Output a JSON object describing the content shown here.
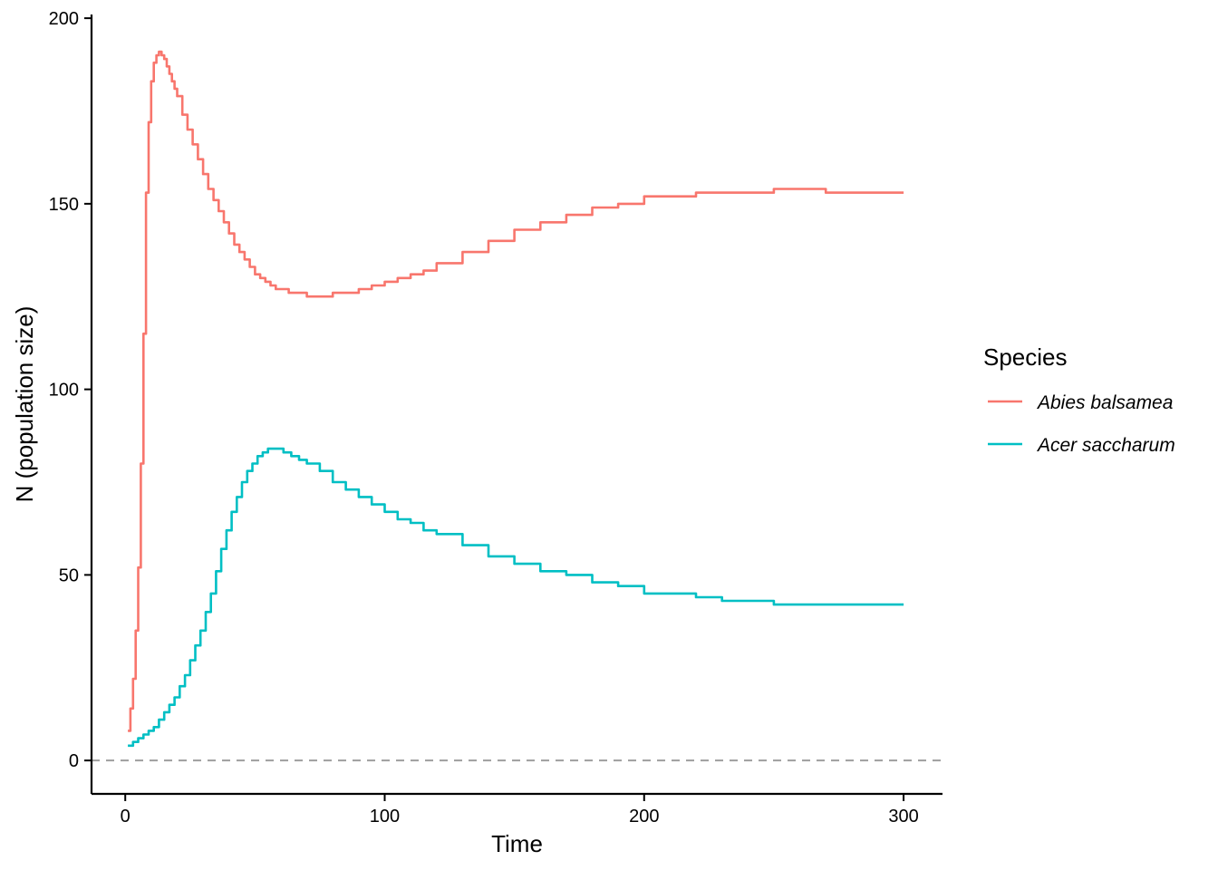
{
  "chart_data": {
    "type": "line",
    "xlabel": "Time",
    "ylabel": "N (population size)",
    "xlim": [
      -13,
      315
    ],
    "ylim": [
      -9,
      201
    ],
    "x_ticks": [
      0,
      100,
      200,
      300
    ],
    "y_ticks": [
      0,
      50,
      100,
      150,
      200
    ],
    "grid": false,
    "reference_line": {
      "y": 0,
      "style": "dashed",
      "color": "#9e9e9e"
    },
    "legend": {
      "title": "Species",
      "placement": "right"
    },
    "series": [
      {
        "name": "Abies balsamea",
        "color": "#F8766D",
        "x": [
          1,
          2,
          3,
          4,
          5,
          6,
          7,
          8,
          9,
          10,
          11,
          12,
          13,
          14,
          15,
          16,
          17,
          18,
          19,
          20,
          22,
          24,
          26,
          28,
          30,
          32,
          34,
          36,
          38,
          40,
          42,
          44,
          46,
          48,
          50,
          52,
          54,
          56,
          58,
          60,
          63,
          66,
          70,
          75,
          80,
          85,
          90,
          95,
          100,
          105,
          110,
          115,
          120,
          130,
          140,
          150,
          160,
          170,
          180,
          190,
          200,
          210,
          220,
          230,
          240,
          250,
          260,
          266,
          270,
          280,
          290,
          300
        ],
        "values": [
          8,
          14,
          22,
          35,
          52,
          80,
          115,
          153,
          172,
          183,
          188,
          190,
          191,
          190,
          189,
          187,
          185,
          183,
          181,
          179,
          174,
          170,
          166,
          162,
          158,
          154,
          151,
          148,
          145,
          142,
          139,
          137,
          135,
          133,
          131,
          130,
          129,
          128,
          127,
          127,
          126,
          126,
          125,
          125,
          126,
          126,
          127,
          128,
          129,
          130,
          131,
          132,
          134,
          137,
          140,
          143,
          145,
          147,
          149,
          150,
          152,
          152,
          153,
          153,
          153,
          154,
          154,
          154,
          153,
          153,
          153,
          153
        ]
      },
      {
        "name": "Acer saccharum",
        "color": "#00BFC4",
        "x": [
          1,
          3,
          5,
          7,
          9,
          11,
          13,
          15,
          17,
          19,
          21,
          23,
          25,
          27,
          29,
          31,
          33,
          35,
          37,
          39,
          41,
          43,
          45,
          47,
          49,
          51,
          53,
          55,
          58,
          61,
          64,
          67,
          70,
          75,
          80,
          85,
          90,
          95,
          100,
          105,
          110,
          115,
          120,
          130,
          140,
          150,
          160,
          170,
          180,
          190,
          200,
          210,
          220,
          230,
          240,
          250,
          260,
          270,
          280,
          290,
          300
        ],
        "values": [
          4,
          5,
          6,
          7,
          8,
          9,
          11,
          13,
          15,
          17,
          20,
          23,
          27,
          31,
          35,
          40,
          45,
          51,
          57,
          62,
          67,
          71,
          75,
          78,
          80,
          82,
          83,
          84,
          84,
          83,
          82,
          81,
          80,
          78,
          75,
          73,
          71,
          69,
          67,
          65,
          64,
          62,
          61,
          58,
          55,
          53,
          51,
          50,
          48,
          47,
          45,
          45,
          44,
          43,
          43,
          42,
          42,
          42,
          42,
          42,
          42
        ]
      }
    ]
  }
}
